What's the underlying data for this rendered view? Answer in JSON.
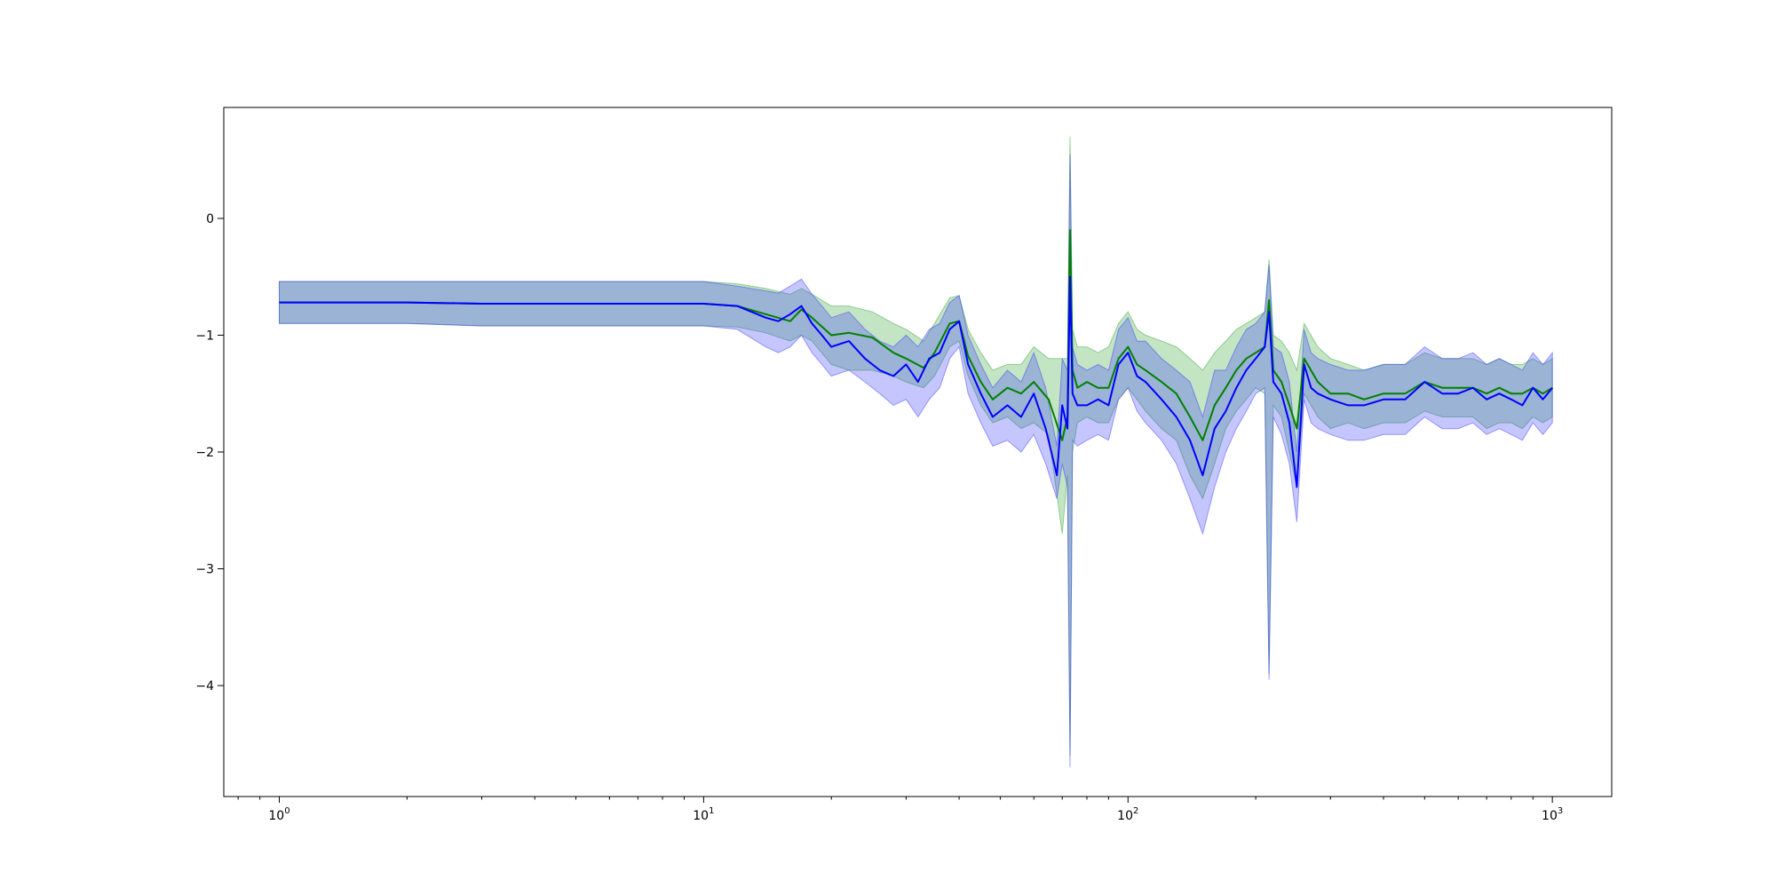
{
  "chart_data": {
    "type": "line",
    "title": "",
    "xlabel": "",
    "ylabel": "",
    "xscale": "log",
    "xlim": [
      0.74,
      1380
    ],
    "ylim": [
      -4.95,
      0.95
    ],
    "grid": false,
    "legend": "none",
    "x_ticks": [
      {
        "base": "10",
        "exp": "0",
        "value": 1
      },
      {
        "base": "10",
        "exp": "1",
        "value": 10
      },
      {
        "base": "10",
        "exp": "2",
        "value": 100
      },
      {
        "base": "10",
        "exp": "3",
        "value": 1000
      }
    ],
    "y_ticks": [
      {
        "label": "0",
        "value": 0
      },
      {
        "label": "−1",
        "value": -1
      },
      {
        "label": "−2",
        "value": -2
      },
      {
        "label": "−3",
        "value": -3
      },
      {
        "label": "−4",
        "value": -4
      }
    ],
    "series": [
      {
        "color": "#008000",
        "band_color": "#2ca02c",
        "x": [
          1,
          2,
          3,
          5,
          8,
          10,
          12,
          14,
          16,
          17,
          18,
          20,
          22,
          25,
          28,
          30,
          33,
          35,
          38,
          40,
          42,
          45,
          48,
          52,
          56,
          60,
          65,
          70,
          72,
          73,
          74,
          76,
          80,
          85,
          90,
          95,
          100,
          105,
          110,
          120,
          130,
          140,
          150,
          160,
          170,
          180,
          190,
          200,
          210,
          215,
          220,
          230,
          240,
          250,
          260,
          280,
          300,
          330,
          360,
          400,
          450,
          500,
          550,
          600,
          650,
          700,
          750,
          800,
          850,
          900,
          950,
          1000
        ],
        "mean": [
          -0.72,
          -0.72,
          -0.73,
          -0.73,
          -0.73,
          -0.73,
          -0.75,
          -0.82,
          -0.88,
          -0.78,
          -0.85,
          -1.0,
          -0.98,
          -1.02,
          -1.15,
          -1.2,
          -1.28,
          -1.15,
          -0.9,
          -0.88,
          -1.18,
          -1.4,
          -1.55,
          -1.45,
          -1.5,
          -1.4,
          -1.55,
          -1.9,
          -1.7,
          -0.1,
          -1.3,
          -1.45,
          -1.4,
          -1.45,
          -1.45,
          -1.2,
          -1.1,
          -1.25,
          -1.3,
          -1.4,
          -1.5,
          -1.7,
          -1.9,
          -1.6,
          -1.45,
          -1.3,
          -1.2,
          -1.15,
          -1.1,
          -0.7,
          -1.3,
          -1.4,
          -1.6,
          -1.8,
          -1.2,
          -1.4,
          -1.5,
          -1.5,
          -1.55,
          -1.5,
          -1.5,
          -1.4,
          -1.45,
          -1.45,
          -1.45,
          -1.5,
          -1.45,
          -1.5,
          -1.5,
          -1.45,
          -1.5,
          -1.45
        ],
        "lower": [
          -0.9,
          -0.9,
          -0.92,
          -0.92,
          -0.92,
          -0.92,
          -0.93,
          -0.98,
          -1.05,
          -1.0,
          -1.05,
          -1.25,
          -1.3,
          -1.3,
          -1.35,
          -1.4,
          -1.45,
          -1.35,
          -1.1,
          -1.05,
          -1.35,
          -1.6,
          -1.75,
          -1.7,
          -1.8,
          -1.75,
          -1.85,
          -2.7,
          -2.2,
          -4.6,
          -2.0,
          -1.75,
          -1.7,
          -1.75,
          -1.75,
          -1.55,
          -1.45,
          -1.55,
          -1.65,
          -1.8,
          -1.9,
          -2.2,
          -2.4,
          -2.1,
          -1.8,
          -1.65,
          -1.55,
          -1.45,
          -1.5,
          -3.9,
          -1.6,
          -1.7,
          -2.0,
          -2.3,
          -1.5,
          -1.7,
          -1.8,
          -1.75,
          -1.8,
          -1.75,
          -1.75,
          -1.65,
          -1.7,
          -1.7,
          -1.7,
          -1.8,
          -1.75,
          -1.75,
          -1.8,
          -1.7,
          -1.75,
          -1.7
        ],
        "upper": [
          -0.54,
          -0.54,
          -0.54,
          -0.54,
          -0.54,
          -0.54,
          -0.56,
          -0.6,
          -0.65,
          -0.6,
          -0.65,
          -0.75,
          -0.75,
          -0.8,
          -0.9,
          -0.95,
          -1.05,
          -0.9,
          -0.68,
          -0.66,
          -0.95,
          -1.15,
          -1.3,
          -1.25,
          -1.25,
          -1.1,
          -1.2,
          -1.2,
          -1.2,
          0.7,
          -0.95,
          -1.1,
          -1.1,
          -1.15,
          -1.1,
          -0.9,
          -0.8,
          -0.95,
          -1.0,
          -1.05,
          -1.1,
          -1.2,
          -1.3,
          -1.15,
          -1.05,
          -0.95,
          -0.9,
          -0.85,
          -0.8,
          -0.35,
          -1.0,
          -1.05,
          -1.15,
          -1.3,
          -0.9,
          -1.1,
          -1.2,
          -1.25,
          -1.3,
          -1.25,
          -1.25,
          -1.15,
          -1.2,
          -1.2,
          -1.2,
          -1.25,
          -1.2,
          -1.25,
          -1.25,
          -1.2,
          -1.25,
          -1.2
        ]
      },
      {
        "color": "#0000ff",
        "band_color": "#3333ff",
        "x": [
          1,
          2,
          3,
          5,
          8,
          10,
          12,
          14,
          15,
          16,
          17,
          18,
          19,
          20,
          22,
          24,
          26,
          28,
          30,
          32,
          34,
          36,
          38,
          40,
          42,
          45,
          48,
          52,
          56,
          60,
          64,
          68,
          70,
          72,
          73,
          74,
          76,
          80,
          85,
          90,
          95,
          100,
          105,
          110,
          120,
          130,
          140,
          150,
          160,
          170,
          180,
          190,
          200,
          210,
          215,
          220,
          230,
          240,
          250,
          260,
          270,
          280,
          300,
          330,
          360,
          400,
          450,
          500,
          550,
          600,
          650,
          700,
          750,
          800,
          850,
          900,
          950,
          1000
        ],
        "mean": [
          -0.72,
          -0.72,
          -0.73,
          -0.73,
          -0.73,
          -0.73,
          -0.75,
          -0.85,
          -0.88,
          -0.82,
          -0.75,
          -0.9,
          -1.0,
          -1.1,
          -1.05,
          -1.2,
          -1.3,
          -1.35,
          -1.25,
          -1.4,
          -1.2,
          -1.15,
          -0.95,
          -0.88,
          -1.25,
          -1.5,
          -1.7,
          -1.6,
          -1.7,
          -1.5,
          -1.8,
          -2.2,
          -1.6,
          -1.8,
          -0.5,
          -1.5,
          -1.6,
          -1.6,
          -1.55,
          -1.6,
          -1.25,
          -1.15,
          -1.35,
          -1.4,
          -1.55,
          -1.7,
          -1.9,
          -2.2,
          -1.8,
          -1.65,
          -1.45,
          -1.3,
          -1.2,
          -1.1,
          -0.8,
          -1.4,
          -1.5,
          -1.75,
          -2.3,
          -1.25,
          -1.45,
          -1.5,
          -1.55,
          -1.6,
          -1.6,
          -1.55,
          -1.55,
          -1.4,
          -1.5,
          -1.5,
          -1.45,
          -1.55,
          -1.5,
          -1.55,
          -1.6,
          -1.45,
          -1.55,
          -1.45
        ],
        "lower": [
          -0.9,
          -0.9,
          -0.92,
          -0.92,
          -0.92,
          -0.92,
          -0.95,
          -1.1,
          -1.15,
          -1.1,
          -1.0,
          -1.15,
          -1.25,
          -1.35,
          -1.3,
          -1.4,
          -1.5,
          -1.6,
          -1.55,
          -1.7,
          -1.55,
          -1.45,
          -1.2,
          -1.1,
          -1.5,
          -1.75,
          -1.95,
          -1.9,
          -2.0,
          -1.85,
          -2.1,
          -2.4,
          -2.1,
          -2.3,
          -4.7,
          -1.9,
          -1.95,
          -1.9,
          -1.85,
          -1.9,
          -1.55,
          -1.45,
          -1.65,
          -1.75,
          -1.9,
          -2.1,
          -2.4,
          -2.7,
          -2.3,
          -2.0,
          -1.8,
          -1.65,
          -1.5,
          -1.45,
          -3.95,
          -1.7,
          -1.85,
          -2.1,
          -2.6,
          -1.55,
          -1.75,
          -1.8,
          -1.85,
          -1.9,
          -1.9,
          -1.85,
          -1.85,
          -1.7,
          -1.8,
          -1.8,
          -1.75,
          -1.85,
          -1.8,
          -1.85,
          -1.9,
          -1.75,
          -1.85,
          -1.75
        ],
        "upper": [
          -0.54,
          -0.54,
          -0.54,
          -0.54,
          -0.54,
          -0.54,
          -0.58,
          -0.62,
          -0.64,
          -0.58,
          -0.52,
          -0.65,
          -0.75,
          -0.85,
          -0.8,
          -0.95,
          -1.05,
          -1.1,
          -1.0,
          -1.1,
          -0.95,
          -0.9,
          -0.72,
          -0.66,
          -1.0,
          -1.25,
          -1.45,
          -1.3,
          -1.4,
          -1.15,
          -1.45,
          -1.95,
          -1.2,
          -1.3,
          0.55,
          -1.1,
          -1.25,
          -1.3,
          -1.25,
          -1.3,
          -0.95,
          -0.85,
          -1.05,
          -1.05,
          -1.2,
          -1.3,
          -1.4,
          -1.7,
          -1.3,
          -1.3,
          -1.1,
          -0.95,
          -0.9,
          -0.8,
          -0.4,
          -1.1,
          -1.15,
          -1.4,
          -2.0,
          -0.95,
          -1.15,
          -1.2,
          -1.25,
          -1.3,
          -1.3,
          -1.25,
          -1.25,
          -1.1,
          -1.2,
          -1.2,
          -1.15,
          -1.25,
          -1.2,
          -1.25,
          -1.3,
          -1.15,
          -1.25,
          -1.15
        ]
      }
    ]
  }
}
